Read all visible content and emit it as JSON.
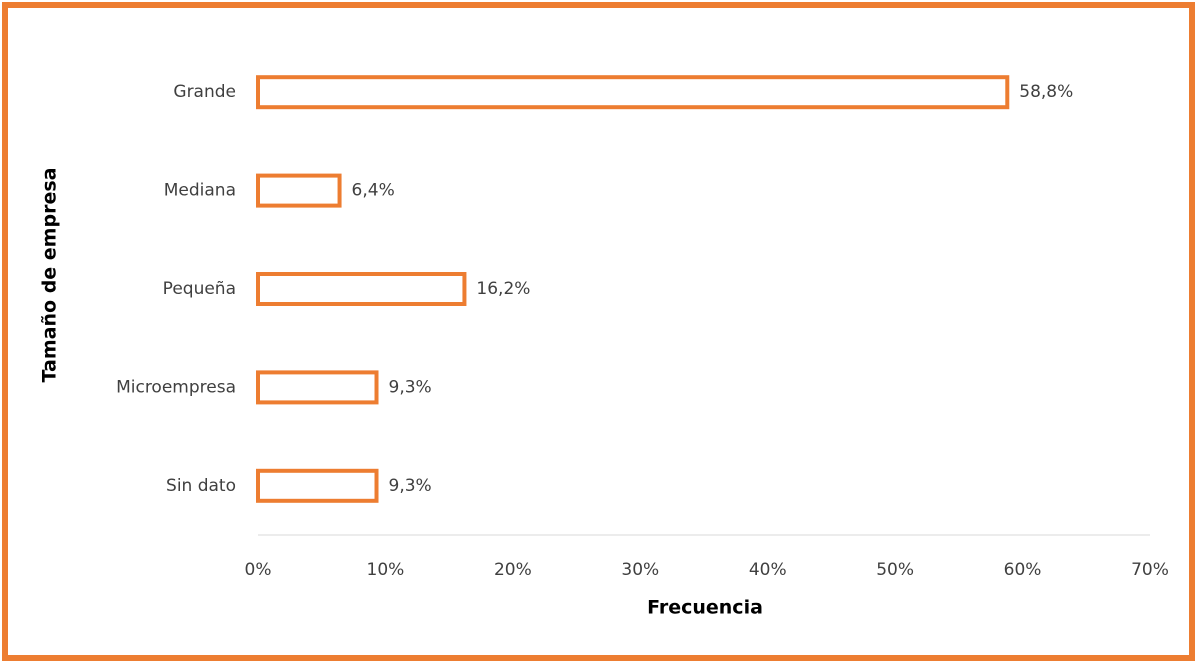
{
  "chart_data": {
    "type": "hbar",
    "categories": [
      "Grande",
      "Mediana",
      "Pequeña",
      "Microempresa",
      "Sin dato"
    ],
    "values": [
      58.8,
      6.4,
      16.2,
      9.3,
      9.3
    ],
    "value_labels": [
      "58,8%",
      "6,4%",
      "16,2%",
      "9,3%",
      "9,3%"
    ],
    "color": "#ed7d31",
    "xlabel": "Frecuencia",
    "ylabel": "Tamaño de empresa",
    "xlim": [
      0,
      70
    ],
    "xticks": [
      {
        "value": 0,
        "label": "0%"
      },
      {
        "value": 10,
        "label": "10%"
      },
      {
        "value": 20,
        "label": "20%"
      },
      {
        "value": 30,
        "label": "30%"
      },
      {
        "value": 40,
        "label": "40%"
      },
      {
        "value": 50,
        "label": "50%"
      },
      {
        "value": 60,
        "label": "60%"
      },
      {
        "value": 70,
        "label": "70%"
      }
    ],
    "grid": false
  }
}
